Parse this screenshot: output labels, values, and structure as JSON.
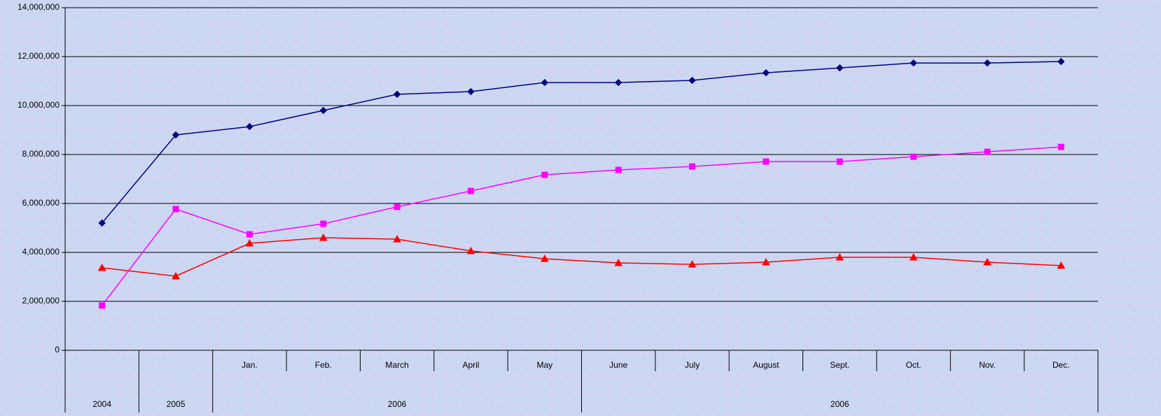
{
  "chart_data": {
    "type": "line",
    "categories": [
      null,
      null,
      "Jan.",
      "Feb.",
      "March",
      "April",
      "May",
      "June",
      "July",
      "August",
      "Sept.",
      "Oct.",
      "Nov.",
      "Dec."
    ],
    "groups": [
      {
        "label": "2004",
        "count": 1
      },
      {
        "label": "2005",
        "count": 1
      },
      {
        "label": "2006",
        "count": 5
      },
      {
        "label": "2006",
        "count": 7
      }
    ],
    "series": [
      {
        "color": "#000080",
        "marker": "diamond",
        "values": [
          5200000,
          8800000,
          9140000,
          9800000,
          10460000,
          10570000,
          10940000,
          10940000,
          11030000,
          11340000,
          11540000,
          11740000,
          11740000,
          11800000
        ]
      },
      {
        "color": "#ff00ff",
        "marker": "square",
        "values": [
          1830000,
          5770000,
          4740000,
          5170000,
          5860000,
          6510000,
          7170000,
          7370000,
          7510000,
          7710000,
          7710000,
          7910000,
          8110000,
          8310000
        ]
      },
      {
        "color": "#ff0000",
        "marker": "triangle",
        "values": [
          3370000,
          3030000,
          4370000,
          4600000,
          4540000,
          4060000,
          3740000,
          3570000,
          3510000,
          3600000,
          3800000,
          3800000,
          3600000,
          3460000
        ]
      }
    ],
    "ylim": [
      0,
      14000000
    ],
    "yticks": [
      {
        "value": 0,
        "label": "0"
      },
      {
        "value": 2000000,
        "label": "2,000,000"
      },
      {
        "value": 4000000,
        "label": "4,000,000"
      },
      {
        "value": 6000000,
        "label": "6,000,000"
      },
      {
        "value": 8000000,
        "label": "8,000,000"
      },
      {
        "value": 10000000,
        "label": "10,000,000"
      },
      {
        "value": 12000000,
        "label": "12,000,000"
      },
      {
        "value": 14000000,
        "label": "14,000,000"
      }
    ],
    "grid": true
  }
}
